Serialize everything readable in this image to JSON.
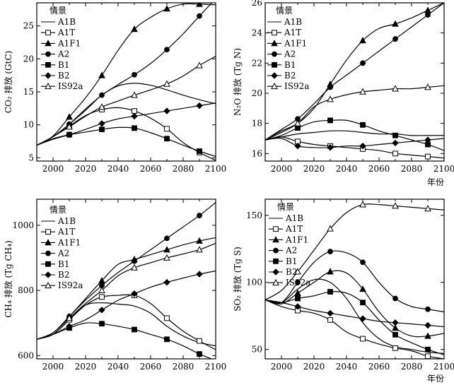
{
  "chart_data": [
    {
      "type": "line",
      "ylabel": "CO₂ 排放 (GtC)",
      "xlabel": "",
      "xlim": [
        1990,
        2100
      ],
      "ylim": [
        4.5,
        28.5
      ],
      "xticks": [
        2000,
        2020,
        2040,
        2060,
        2080,
        2100
      ],
      "yticks": [
        5,
        10,
        15,
        20,
        25
      ],
      "legend_title": "情景",
      "legend_position": "top-left",
      "series": [
        {
          "name": "A1B",
          "marker": "none",
          "x": [
            1990,
            2000,
            2010,
            2020,
            2030,
            2040,
            2050,
            2060,
            2070,
            2080,
            2090,
            2100
          ],
          "y": [
            6.9,
            8.2,
            10.1,
            12.2,
            14.5,
            15.9,
            16.3,
            16.0,
            15.3,
            14.5,
            13.8,
            13.2
          ]
        },
        {
          "name": "A1T",
          "marker": "open-square",
          "x": [
            1990,
            2000,
            2010,
            2020,
            2030,
            2040,
            2050,
            2060,
            2070,
            2080,
            2090,
            2100
          ],
          "y": [
            6.9,
            8.2,
            9.8,
            11.4,
            12.3,
            12.6,
            12.1,
            11.0,
            9.4,
            7.3,
            5.8,
            4.6
          ]
        },
        {
          "name": "A1F1",
          "marker": "filled-triangle",
          "x": [
            1990,
            2000,
            2010,
            2020,
            2030,
            2040,
            2050,
            2060,
            2070,
            2080,
            2090,
            2100
          ],
          "y": [
            6.9,
            8.3,
            11.2,
            14.1,
            17.5,
            21.3,
            24.5,
            26.3,
            27.6,
            28.3,
            28.3,
            28.2
          ]
        },
        {
          "name": "A2",
          "marker": "filled-circle",
          "x": [
            1990,
            2000,
            2010,
            2020,
            2030,
            2040,
            2050,
            2060,
            2070,
            2080,
            2090,
            2100
          ],
          "y": [
            6.9,
            8.2,
            10.1,
            12.4,
            14.5,
            16.1,
            17.6,
            19.3,
            21.4,
            23.8,
            26.5,
            29.1
          ]
        },
        {
          "name": "B1",
          "marker": "filled-square",
          "x": [
            1990,
            2000,
            2010,
            2020,
            2030,
            2040,
            2050,
            2060,
            2070,
            2080,
            2090,
            2100
          ],
          "y": [
            6.9,
            7.9,
            8.5,
            8.9,
            9.3,
            9.6,
            9.5,
            8.8,
            7.9,
            6.9,
            6.0,
            5.2
          ]
        },
        {
          "name": "B2",
          "marker": "filled-diamond",
          "x": [
            1990,
            2000,
            2010,
            2020,
            2030,
            2040,
            2050,
            2060,
            2070,
            2080,
            2090,
            2100
          ],
          "y": [
            6.9,
            7.8,
            8.5,
            9.3,
            10.2,
            10.9,
            11.3,
            11.7,
            12.1,
            12.5,
            12.9,
            13.3
          ]
        },
        {
          "name": "IS92a",
          "marker": "open-triangle",
          "x": [
            1990,
            2000,
            2010,
            2020,
            2030,
            2040,
            2050,
            2060,
            2070,
            2080,
            2090,
            2100
          ],
          "y": [
            6.9,
            8.2,
            9.7,
            11.3,
            12.7,
            13.6,
            14.5,
            15.3,
            16.2,
            17.4,
            19.0,
            20.4
          ]
        }
      ]
    },
    {
      "type": "line",
      "ylabel": "N₂O 排放 (Tg N)",
      "xlabel": "年份",
      "xlim": [
        1990,
        2100
      ],
      "ylim": [
        15.5,
        26
      ],
      "xticks": [
        2000,
        2020,
        2040,
        2060,
        2080,
        2100
      ],
      "yticks": [
        16,
        18,
        20,
        22,
        24,
        26
      ],
      "legend_title": "情景",
      "legend_position": "top-left",
      "series": [
        {
          "name": "A1B",
          "marker": "none",
          "x": [
            1990,
            2000,
            2010,
            2020,
            2030,
            2040,
            2050,
            2060,
            2070,
            2080,
            2090,
            2100
          ],
          "y": [
            16.9,
            17.1,
            17.3,
            17.4,
            17.5,
            17.5,
            17.4,
            17.3,
            17.3,
            17.2,
            17.2,
            17.2
          ]
        },
        {
          "name": "A1T",
          "marker": "open-square",
          "x": [
            1990,
            2000,
            2010,
            2020,
            2030,
            2040,
            2050,
            2060,
            2070,
            2080,
            2090,
            2100
          ],
          "y": [
            16.9,
            17.1,
            16.8,
            16.6,
            16.5,
            16.4,
            16.3,
            16.2,
            16.0,
            15.9,
            15.8,
            15.7
          ]
        },
        {
          "name": "A1F1",
          "marker": "filled-triangle",
          "x": [
            1990,
            2000,
            2010,
            2020,
            2030,
            2040,
            2050,
            2060,
            2070,
            2080,
            2090,
            2100
          ],
          "y": [
            16.9,
            17.5,
            18.0,
            19.0,
            20.6,
            22.2,
            23.5,
            24.3,
            24.6,
            25.0,
            25.5,
            26.0
          ]
        },
        {
          "name": "A2",
          "marker": "filled-circle",
          "x": [
            1990,
            2000,
            2010,
            2020,
            2030,
            2040,
            2050,
            2060,
            2070,
            2080,
            2090,
            2100
          ],
          "y": [
            16.9,
            17.6,
            18.3,
            19.3,
            20.4,
            21.2,
            22.0,
            22.8,
            23.6,
            24.4,
            25.2,
            26.0
          ]
        },
        {
          "name": "B1",
          "marker": "filled-square",
          "x": [
            1990,
            2000,
            2010,
            2020,
            2030,
            2040,
            2050,
            2060,
            2070,
            2080,
            2090,
            2100
          ],
          "y": [
            16.9,
            17.2,
            17.7,
            18.1,
            18.2,
            18.2,
            17.9,
            17.5,
            17.2,
            16.9,
            16.6,
            16.2
          ]
        },
        {
          "name": "B2",
          "marker": "filled-diamond",
          "x": [
            1990,
            2000,
            2010,
            2020,
            2030,
            2040,
            2050,
            2060,
            2070,
            2080,
            2090,
            2100
          ],
          "y": [
            16.9,
            17.0,
            16.5,
            16.4,
            16.4,
            16.5,
            16.5,
            16.6,
            16.7,
            16.8,
            16.9,
            17.0
          ]
        },
        {
          "name": "IS92a",
          "marker": "open-triangle",
          "x": [
            1990,
            2000,
            2010,
            2020,
            2030,
            2040,
            2050,
            2060,
            2070,
            2080,
            2090,
            2100
          ],
          "y": [
            16.9,
            17.4,
            18.0,
            19.1,
            19.6,
            19.9,
            20.1,
            20.2,
            20.3,
            20.3,
            20.4,
            20.5
          ]
        }
      ]
    },
    {
      "type": "line",
      "ylabel": "CH₄ 排放 (Tg CH₄)",
      "xlabel": "",
      "xlim": [
        1990,
        2100
      ],
      "ylim": [
        590,
        1080
      ],
      "xticks": [
        2000,
        2020,
        2040,
        2060,
        2080,
        2100
      ],
      "yticks": [
        600,
        800,
        1000
      ],
      "legend_title": "情景",
      "legend_position": "top-left",
      "series": [
        {
          "name": "A1B",
          "marker": "none",
          "x": [
            1990,
            2000,
            2010,
            2020,
            2030,
            2040,
            2050,
            2060,
            2070,
            2080,
            2090,
            2100
          ],
          "y": [
            650,
            665,
            710,
            755,
            762,
            758,
            752,
            730,
            690,
            660,
            640,
            630
          ]
        },
        {
          "name": "A1T",
          "marker": "open-square",
          "x": [
            1990,
            2000,
            2010,
            2020,
            2030,
            2040,
            2050,
            2060,
            2070,
            2080,
            2090,
            2100
          ],
          "y": [
            650,
            665,
            710,
            755,
            780,
            785,
            785,
            760,
            715,
            675,
            645,
            618
          ]
        },
        {
          "name": "A1F1",
          "marker": "filled-triangle",
          "x": [
            1990,
            2000,
            2010,
            2020,
            2030,
            2040,
            2050,
            2060,
            2070,
            2080,
            2090,
            2100
          ],
          "y": [
            650,
            670,
            720,
            775,
            830,
            880,
            895,
            910,
            925,
            940,
            952,
            962
          ]
        },
        {
          "name": "A2",
          "marker": "filled-circle",
          "x": [
            1990,
            2000,
            2010,
            2020,
            2030,
            2040,
            2050,
            2060,
            2070,
            2080,
            2090,
            2100
          ],
          "y": [
            650,
            670,
            720,
            770,
            815,
            855,
            890,
            925,
            960,
            995,
            1030,
            1070
          ]
        },
        {
          "name": "B1",
          "marker": "filled-square",
          "x": [
            1990,
            2000,
            2010,
            2020,
            2030,
            2040,
            2050,
            2060,
            2070,
            2080,
            2090,
            2100
          ],
          "y": [
            650,
            665,
            685,
            700,
            698,
            690,
            680,
            665,
            650,
            630,
            605,
            585
          ]
        },
        {
          "name": "B2",
          "marker": "filled-diamond",
          "x": [
            1990,
            2000,
            2010,
            2020,
            2030,
            2040,
            2050,
            2060,
            2070,
            2080,
            2090,
            2100
          ],
          "y": [
            650,
            665,
            690,
            710,
            740,
            770,
            790,
            810,
            825,
            838,
            850,
            860
          ]
        },
        {
          "name": "IS92a",
          "marker": "open-triangle",
          "x": [
            1990,
            2000,
            2010,
            2020,
            2030,
            2040,
            2050,
            2060,
            2070,
            2080,
            2090,
            2100
          ],
          "y": [
            650,
            670,
            715,
            760,
            800,
            845,
            870,
            885,
            900,
            912,
            925,
            945
          ]
        }
      ]
    },
    {
      "type": "line",
      "ylabel": "SO₂ 排放 (Tg S)",
      "xlabel": "年份",
      "xlim": [
        1990,
        2100
      ],
      "ylim": [
        43,
        162
      ],
      "xticks": [
        2000,
        2020,
        2040,
        2060,
        2080,
        2100
      ],
      "yticks": [
        50,
        100,
        150
      ],
      "legend_title": "情景",
      "legend_position": "top-left",
      "series": [
        {
          "name": "A1B",
          "marker": "none",
          "x": [
            1990,
            2000,
            2010,
            2020,
            2030,
            2040,
            2050,
            2060,
            2070,
            2080,
            2090,
            2100
          ],
          "y": [
            87,
            85,
            95,
            102,
            100,
            88,
            70,
            58,
            52,
            50,
            48,
            47
          ]
        },
        {
          "name": "A1T",
          "marker": "open-square",
          "x": [
            1990,
            2000,
            2010,
            2020,
            2030,
            2040,
            2050,
            2060,
            2070,
            2080,
            2090,
            2100
          ],
          "y": [
            87,
            82,
            79,
            77,
            72,
            63,
            58,
            54,
            51,
            49,
            45,
            43
          ]
        },
        {
          "name": "A1F1",
          "marker": "filled-triangle",
          "x": [
            1990,
            2000,
            2010,
            2020,
            2030,
            2040,
            2050,
            2060,
            2070,
            2080,
            2090,
            2100
          ],
          "y": [
            87,
            84,
            92,
            100,
            108,
            107,
            95,
            78,
            66,
            60,
            60,
            62
          ]
        },
        {
          "name": "A2",
          "marker": "filled-circle",
          "x": [
            1990,
            2000,
            2010,
            2020,
            2030,
            2040,
            2050,
            2060,
            2070,
            2080,
            2090,
            2100
          ],
          "y": [
            87,
            85,
            100,
            115,
            123,
            122,
            115,
            100,
            88,
            82,
            80,
            78
          ]
        },
        {
          "name": "B1",
          "marker": "filled-square",
          "x": [
            1990,
            2000,
            2010,
            2020,
            2030,
            2040,
            2050,
            2060,
            2070,
            2080,
            2090,
            2100
          ],
          "y": [
            87,
            85,
            88,
            90,
            93,
            92,
            85,
            72,
            61,
            55,
            50,
            46
          ]
        },
        {
          "name": "B2",
          "marker": "filled-diamond",
          "x": [
            1990,
            2000,
            2010,
            2020,
            2030,
            2040,
            2050,
            2060,
            2070,
            2080,
            2090,
            2100
          ],
          "y": [
            87,
            85,
            82,
            79,
            77,
            75,
            73,
            71,
            70,
            69,
            68,
            67
          ]
        },
        {
          "name": "IS92a",
          "marker": "open-triangle",
          "x": [
            1990,
            2000,
            2010,
            2020,
            2030,
            2040,
            2050,
            2060,
            2070,
            2080,
            2090,
            2100
          ],
          "y": [
            87,
            94,
            108,
            124,
            140,
            152,
            158,
            158,
            157,
            156,
            155,
            154
          ]
        }
      ]
    }
  ]
}
